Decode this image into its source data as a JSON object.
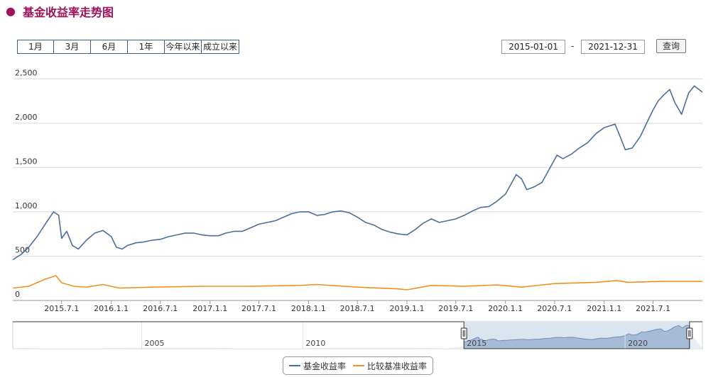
{
  "page": {
    "title": "基金收益率走势图"
  },
  "toolbar": {
    "ranges": [
      "1月",
      "3月",
      "6月",
      "1年",
      "今年以来",
      "成立以来"
    ],
    "start_date": "2015-01-01",
    "date_separator": "-",
    "end_date": "2021-12-31",
    "query_label": "查询"
  },
  "colors": {
    "fund": "#4a6f9a",
    "benchmark": "#f0901e",
    "title": "#a0125b",
    "navigator_fill": "#a6bcd6"
  },
  "chart_data": {
    "type": "line",
    "title": "",
    "xlabel": "",
    "ylabel": "",
    "x_range": [
      "2015-01-01",
      "2021-12-31"
    ],
    "ylim": [
      0,
      2750
    ],
    "y_ticks": [
      0,
      500,
      1000,
      1500,
      2000,
      2500
    ],
    "y_tick_labels": [
      "0",
      "500",
      "1,000",
      "1,500",
      "2,000",
      "2,500"
    ],
    "x_tick_labels": [
      "2015.7.1",
      "2016.1.1",
      "2016.7.1",
      "2017.1.1",
      "2017.7.1",
      "2018.1.1",
      "2018.7.1",
      "2019.1.1",
      "2019.7.1",
      "2020.1.1",
      "2020.7.1",
      "2021.1.1",
      "2021.7.1"
    ],
    "x_tick_dates": [
      "2015-07-01",
      "2016-01-01",
      "2016-07-01",
      "2017-01-01",
      "2017-07-01",
      "2018-01-01",
      "2018-07-01",
      "2019-01-01",
      "2019-07-01",
      "2020-01-01",
      "2020-07-01",
      "2021-01-01",
      "2021-07-01"
    ],
    "grid": "horizontal",
    "legend_position": "bottom-center",
    "series": [
      {
        "name": "基金收益率",
        "color": "#4a6f9a",
        "points": [
          [
            "2015-01-01",
            460
          ],
          [
            "2015-02-01",
            520
          ],
          [
            "2015-03-01",
            600
          ],
          [
            "2015-04-01",
            720
          ],
          [
            "2015-05-01",
            860
          ],
          [
            "2015-06-01",
            1000
          ],
          [
            "2015-06-20",
            960
          ],
          [
            "2015-07-01",
            700
          ],
          [
            "2015-07-20",
            780
          ],
          [
            "2015-08-10",
            620
          ],
          [
            "2015-09-01",
            580
          ],
          [
            "2015-10-01",
            680
          ],
          [
            "2015-11-01",
            760
          ],
          [
            "2015-12-01",
            790
          ],
          [
            "2016-01-01",
            720
          ],
          [
            "2016-01-20",
            600
          ],
          [
            "2016-02-10",
            580
          ],
          [
            "2016-03-01",
            620
          ],
          [
            "2016-04-01",
            650
          ],
          [
            "2016-05-01",
            660
          ],
          [
            "2016-06-01",
            680
          ],
          [
            "2016-07-01",
            690
          ],
          [
            "2016-08-01",
            720
          ],
          [
            "2016-09-01",
            740
          ],
          [
            "2016-10-01",
            760
          ],
          [
            "2016-11-01",
            760
          ],
          [
            "2016-12-01",
            740
          ],
          [
            "2017-01-01",
            730
          ],
          [
            "2017-02-01",
            730
          ],
          [
            "2017-03-01",
            760
          ],
          [
            "2017-04-01",
            780
          ],
          [
            "2017-05-01",
            780
          ],
          [
            "2017-06-01",
            820
          ],
          [
            "2017-07-01",
            860
          ],
          [
            "2017-08-01",
            880
          ],
          [
            "2017-09-01",
            900
          ],
          [
            "2017-10-01",
            940
          ],
          [
            "2017-11-01",
            980
          ],
          [
            "2017-12-01",
            1000
          ],
          [
            "2018-01-01",
            1000
          ],
          [
            "2018-02-01",
            960
          ],
          [
            "2018-03-01",
            970
          ],
          [
            "2018-04-01",
            1000
          ],
          [
            "2018-05-01",
            1010
          ],
          [
            "2018-06-01",
            990
          ],
          [
            "2018-07-01",
            940
          ],
          [
            "2018-08-01",
            880
          ],
          [
            "2018-09-01",
            850
          ],
          [
            "2018-10-01",
            800
          ],
          [
            "2018-11-01",
            770
          ],
          [
            "2018-12-01",
            750
          ],
          [
            "2019-01-01",
            740
          ],
          [
            "2019-02-01",
            800
          ],
          [
            "2019-03-01",
            870
          ],
          [
            "2019-04-01",
            920
          ],
          [
            "2019-05-01",
            880
          ],
          [
            "2019-06-01",
            900
          ],
          [
            "2019-07-01",
            920
          ],
          [
            "2019-08-01",
            960
          ],
          [
            "2019-09-01",
            1010
          ],
          [
            "2019-10-01",
            1050
          ],
          [
            "2019-11-01",
            1060
          ],
          [
            "2019-12-01",
            1120
          ],
          [
            "2020-01-01",
            1200
          ],
          [
            "2020-02-10",
            1420
          ],
          [
            "2020-03-01",
            1370
          ],
          [
            "2020-03-20",
            1250
          ],
          [
            "2020-04-15",
            1280
          ],
          [
            "2020-05-15",
            1330
          ],
          [
            "2020-06-15",
            1500
          ],
          [
            "2020-07-10",
            1640
          ],
          [
            "2020-08-01",
            1600
          ],
          [
            "2020-09-01",
            1650
          ],
          [
            "2020-10-01",
            1720
          ],
          [
            "2020-11-01",
            1780
          ],
          [
            "2020-12-01",
            1880
          ],
          [
            "2021-01-01",
            1950
          ],
          [
            "2021-02-10",
            1990
          ],
          [
            "2021-03-01",
            1850
          ],
          [
            "2021-03-20",
            1700
          ],
          [
            "2021-04-15",
            1720
          ],
          [
            "2021-05-15",
            1850
          ],
          [
            "2021-06-15",
            2050
          ],
          [
            "2021-07-01",
            2150
          ],
          [
            "2021-07-20",
            2250
          ],
          [
            "2021-08-10",
            2320
          ],
          [
            "2021-09-01",
            2380
          ],
          [
            "2021-09-20",
            2230
          ],
          [
            "2021-10-15",
            2100
          ],
          [
            "2021-11-10",
            2340
          ],
          [
            "2021-12-01",
            2420
          ],
          [
            "2021-12-31",
            2350
          ]
        ]
      },
      {
        "name": "比较基准收益率",
        "color": "#f0901e",
        "points": [
          [
            "2015-01-01",
            140
          ],
          [
            "2015-03-01",
            160
          ],
          [
            "2015-05-01",
            240
          ],
          [
            "2015-06-10",
            280
          ],
          [
            "2015-07-01",
            200
          ],
          [
            "2015-08-15",
            160
          ],
          [
            "2015-10-01",
            150
          ],
          [
            "2015-12-01",
            180
          ],
          [
            "2016-02-01",
            140
          ],
          [
            "2016-06-01",
            150
          ],
          [
            "2016-12-01",
            160
          ],
          [
            "2017-06-01",
            160
          ],
          [
            "2017-12-01",
            170
          ],
          [
            "2018-02-01",
            180
          ],
          [
            "2018-07-01",
            150
          ],
          [
            "2018-12-01",
            130
          ],
          [
            "2019-01-01",
            120
          ],
          [
            "2019-04-01",
            170
          ],
          [
            "2019-08-01",
            160
          ],
          [
            "2019-12-01",
            175
          ],
          [
            "2020-03-01",
            150
          ],
          [
            "2020-07-01",
            190
          ],
          [
            "2020-12-01",
            205
          ],
          [
            "2021-02-15",
            225
          ],
          [
            "2021-04-01",
            205
          ],
          [
            "2021-08-01",
            215
          ],
          [
            "2021-12-31",
            215
          ]
        ]
      }
    ]
  },
  "navigator": {
    "labels": [
      "2005",
      "2010",
      "2015",
      "2020"
    ]
  }
}
